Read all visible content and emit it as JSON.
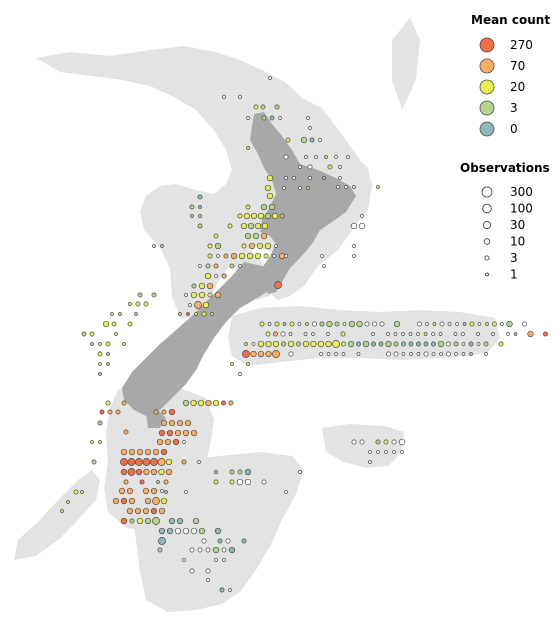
{
  "legend": {
    "mean_count": {
      "title": "Mean count",
      "items": [
        {
          "label": "270",
          "color": "#f46d43"
        },
        {
          "label": "70",
          "color": "#fdae61"
        },
        {
          "label": "20",
          "color": "#e6f051"
        },
        {
          "label": "3",
          "color": "#b5d68a"
        },
        {
          "label": "0",
          "color": "#8fb9b9"
        }
      ]
    },
    "observations": {
      "title": "Observations",
      "items": [
        "300",
        "100",
        "30",
        "10",
        "3",
        "1"
      ]
    }
  },
  "colors": {
    "land_dark": "#a8a8a8",
    "land_light": "#e3e3e3",
    "empty_marker": "#ffffff",
    "marker_stroke": "#4d4d4d"
  }
}
